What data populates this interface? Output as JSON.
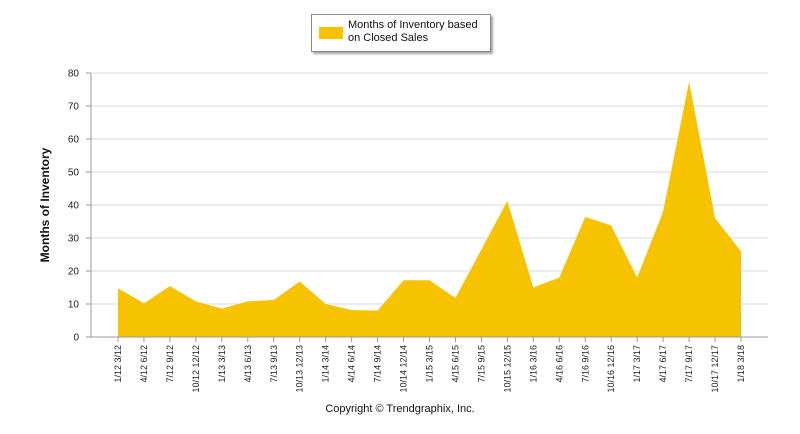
{
  "legend": {
    "label_line1": "Months of Inventory based",
    "label_line2": "on Closed Sales"
  },
  "copyright": "Copyright © Trendgraphix, Inc.",
  "colors": {
    "area": "#F7C300",
    "grid": "#d9d9d9",
    "axis": "#9a9a9a"
  },
  "chart_data": {
    "type": "area",
    "title": "",
    "ylabel": "Months of Inventory",
    "xlabel": "",
    "ylim": [
      0,
      80
    ],
    "yticks": [
      0,
      10,
      20,
      30,
      40,
      50,
      60,
      70,
      80
    ],
    "grid": true,
    "legend_position": "top-center",
    "categories": [
      "1/12 3/12",
      "4/12 6/12",
      "7/12 9/12",
      "10/12 12/12",
      "1/13 3/13",
      "4/13 6/13",
      "7/13 9/13",
      "10/13 12/13",
      "1/14 3/14",
      "4/14 6/14",
      "7/14 9/14",
      "10/14 12/14",
      "1/15 3/15",
      "4/15 6/15",
      "7/15 9/15",
      "10/15 12/15",
      "1/16 3/16",
      "4/16 6/16",
      "7/16 9/16",
      "10/16 12/16",
      "1/17 3/17",
      "4/17 6/17",
      "7/17 9/17",
      "10/17 12/17",
      "1/18 3/18"
    ],
    "series": [
      {
        "name": "Months of Inventory based on Closed Sales",
        "values": [
          14.8,
          10.2,
          15.4,
          10.8,
          8.6,
          10.8,
          11.2,
          16.8,
          10.0,
          8.2,
          8.0,
          17.2,
          17.2,
          11.8,
          26.5,
          41.2,
          15.0,
          18.0,
          36.4,
          33.8,
          18.0,
          38.0,
          77.4,
          36.0,
          26.0
        ]
      }
    ]
  }
}
